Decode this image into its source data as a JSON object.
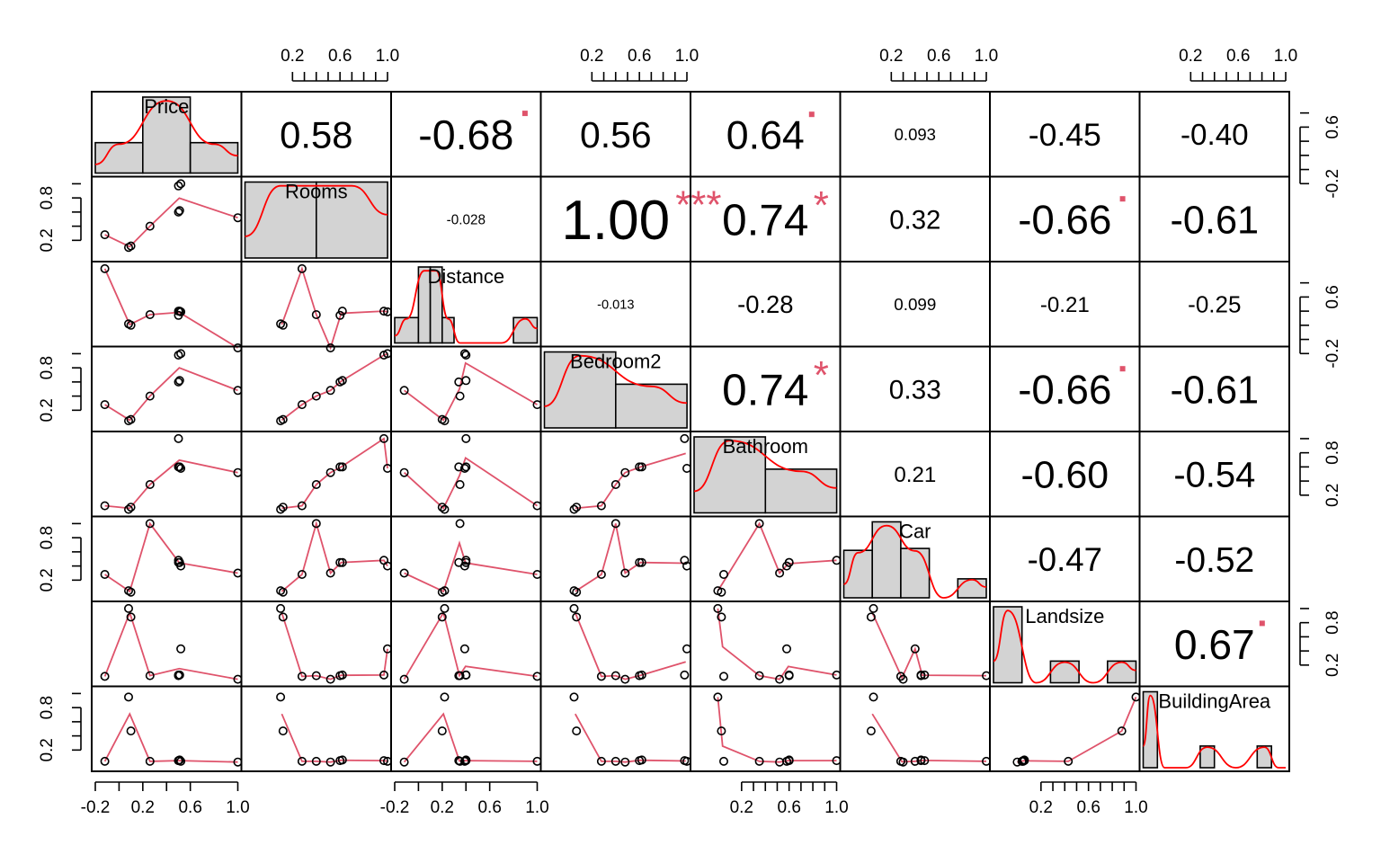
{
  "chart_data": {
    "type": "scatter-matrix",
    "variables": [
      "Price",
      "Rooms",
      "Distance",
      "Bedroom2",
      "Bathroom",
      "Car",
      "Landsize",
      "BuildingArea"
    ],
    "observations": {
      "Price": [
        -0.12,
        0.08,
        0.1,
        0.26,
        0.5,
        0.5,
        0.51,
        0.52,
        1.0
      ],
      "Rooms": [
        0.28,
        0.1,
        0.12,
        0.4,
        0.97,
        0.6,
        0.62,
        1.0,
        0.52
      ],
      "Distance": [
        1.0,
        0.22,
        0.2,
        0.35,
        0.4,
        0.34,
        0.4,
        0.39,
        -0.12
      ],
      "Bedroom2": [
        0.28,
        0.05,
        0.07,
        0.4,
        0.98,
        0.6,
        0.62,
        1.0,
        0.48
      ],
      "Bathroom": [
        0.05,
        0.0,
        0.03,
        0.35,
        1.0,
        0.6,
        0.6,
        0.58,
        0.52
      ],
      "Car": [
        0.28,
        0.05,
        0.03,
        1.0,
        0.48,
        0.45,
        0.45,
        0.4,
        0.3
      ],
      "Landsize": [
        0.04,
        1.0,
        0.88,
        0.05,
        0.06,
        0.05,
        0.06,
        0.43,
        0.0
      ],
      "BuildingArea": [
        0.04,
        0.95,
        0.47,
        0.04,
        0.05,
        0.05,
        0.06,
        0.04,
        0.03
      ]
    },
    "correlations": [
      {
        "row": 1,
        "col": 2,
        "label": "0.58",
        "stars": ""
      },
      {
        "row": 1,
        "col": 3,
        "label": "-0.68",
        "stars": "."
      },
      {
        "row": 1,
        "col": 4,
        "label": "0.56",
        "stars": ""
      },
      {
        "row": 1,
        "col": 5,
        "label": "0.64",
        "stars": "."
      },
      {
        "row": 1,
        "col": 6,
        "label": "0.093",
        "stars": ""
      },
      {
        "row": 1,
        "col": 7,
        "label": "-0.45",
        "stars": ""
      },
      {
        "row": 1,
        "col": 8,
        "label": "-0.40",
        "stars": ""
      },
      {
        "row": 2,
        "col": 3,
        "label": "-0.028",
        "stars": ""
      },
      {
        "row": 2,
        "col": 4,
        "label": "1.00",
        "stars": "***"
      },
      {
        "row": 2,
        "col": 5,
        "label": "0.74",
        "stars": "*"
      },
      {
        "row": 2,
        "col": 6,
        "label": "0.32",
        "stars": ""
      },
      {
        "row": 2,
        "col": 7,
        "label": "-0.66",
        "stars": "."
      },
      {
        "row": 2,
        "col": 8,
        "label": "-0.61",
        "stars": ""
      },
      {
        "row": 3,
        "col": 4,
        "label": "-0.013",
        "stars": ""
      },
      {
        "row": 3,
        "col": 5,
        "label": "-0.28",
        "stars": ""
      },
      {
        "row": 3,
        "col": 6,
        "label": "0.099",
        "stars": ""
      },
      {
        "row": 3,
        "col": 7,
        "label": "-0.21",
        "stars": ""
      },
      {
        "row": 3,
        "col": 8,
        "label": "-0.25",
        "stars": ""
      },
      {
        "row": 4,
        "col": 5,
        "label": "0.74",
        "stars": "*"
      },
      {
        "row": 4,
        "col": 6,
        "label": "0.33",
        "stars": ""
      },
      {
        "row": 4,
        "col": 7,
        "label": "-0.66",
        "stars": "."
      },
      {
        "row": 4,
        "col": 8,
        "label": "-0.61",
        "stars": ""
      },
      {
        "row": 5,
        "col": 6,
        "label": "0.21",
        "stars": ""
      },
      {
        "row": 5,
        "col": 7,
        "label": "-0.60",
        "stars": ""
      },
      {
        "row": 5,
        "col": 8,
        "label": "-0.54",
        "stars": ""
      },
      {
        "row": 6,
        "col": 7,
        "label": "-0.47",
        "stars": ""
      },
      {
        "row": 6,
        "col": 8,
        "label": "-0.52",
        "stars": ""
      },
      {
        "row": 7,
        "col": 8,
        "label": "0.67",
        "stars": "."
      }
    ],
    "histograms": {
      "Price": {
        "edges": [
          -0.2,
          0.2,
          0.6,
          1.0
        ],
        "counts": [
          2,
          5,
          2
        ]
      },
      "Rooms": {
        "edges": [
          0.0,
          0.5,
          1.0
        ],
        "counts": [
          5,
          5
        ]
      },
      "Distance": {
        "edges": [
          -0.2,
          0.0,
          0.1,
          0.2,
          0.3,
          0.4,
          0.6,
          0.8,
          1.0
        ],
        "counts": [
          1,
          3,
          3,
          1,
          0,
          0,
          0,
          1
        ]
      },
      "Bedroom2": {
        "edges": [
          0.0,
          0.5,
          1.0
        ],
        "counts": [
          4,
          2.3
        ]
      },
      "Bathroom": {
        "edges": [
          0.0,
          0.5,
          1.0
        ],
        "counts": [
          4,
          2.3
        ]
      },
      "Car": {
        "edges": [
          0.0,
          0.2,
          0.4,
          0.6,
          0.8,
          1.0
        ],
        "counts": [
          2.5,
          4,
          2.6,
          0,
          1
        ]
      },
      "Landsize": {
        "edges": [
          0.0,
          0.2,
          0.4,
          0.6,
          0.8,
          1.0
        ],
        "counts": [
          7,
          0,
          2,
          0,
          2
        ]
      },
      "BuildingArea": {
        "edges": [
          0.0,
          0.1,
          0.2,
          0.4,
          0.5,
          0.8,
          0.9,
          1.0
        ],
        "counts": [
          7,
          0,
          0,
          2,
          0,
          2,
          0
        ]
      }
    },
    "axis_ticks": {
      "row_a": [
        "0.2",
        "0.8"
      ],
      "row_b": [
        "-0.2",
        "0.6"
      ],
      "col_a": [
        "0.2",
        "0.6",
        "1.0"
      ],
      "col_b": [
        "-0.2",
        "0.2",
        "0.6",
        "1.0"
      ]
    },
    "xlim": [
      -0.2,
      1.0
    ],
    "ylim": [
      -0.05,
      1.05
    ],
    "grid": false,
    "legend": "none"
  },
  "colors": {
    "fit_line": "#df536b",
    "density_line": "#ff0000",
    "significance": "#df536b",
    "bars": "#d3d3d3"
  }
}
